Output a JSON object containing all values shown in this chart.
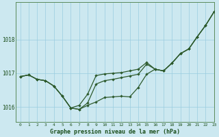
{
  "title": "Graphe pression niveau de la mer (hPa)",
  "background_color": "#cce8f0",
  "line_color": "#2d5a2d",
  "grid_color": "#99cce0",
  "text_color": "#1a4d1a",
  "xlim": [
    -0.5,
    23
  ],
  "ylim": [
    1015.55,
    1019.1
  ],
  "yticks": [
    1016,
    1017,
    1018
  ],
  "xticks": [
    0,
    1,
    2,
    3,
    4,
    5,
    6,
    7,
    8,
    9,
    10,
    11,
    12,
    13,
    14,
    15,
    16,
    17,
    18,
    19,
    20,
    21,
    22,
    23
  ],
  "line1": [
    1016.9,
    1016.95,
    1016.82,
    1016.78,
    1016.62,
    1016.32,
    1015.97,
    1015.93,
    1016.05,
    1016.15,
    1016.28,
    1016.3,
    1016.32,
    1016.3,
    1016.58,
    1016.97,
    1017.12,
    1017.07,
    1017.3,
    1017.58,
    1017.72,
    1018.08,
    1018.42,
    1018.82
  ],
  "line2": [
    1016.9,
    1016.95,
    1016.82,
    1016.78,
    1016.62,
    1016.32,
    1015.97,
    1015.93,
    1016.12,
    1016.68,
    1016.78,
    1016.82,
    1016.87,
    1016.92,
    1016.97,
    1017.27,
    1017.12,
    1017.07,
    1017.3,
    1017.58,
    1017.72,
    1018.08,
    1018.42,
    1018.82
  ],
  "line3": [
    1016.9,
    1016.95,
    1016.82,
    1016.78,
    1016.62,
    1016.32,
    1015.97,
    1016.05,
    1016.38,
    1016.93,
    1016.98,
    1017.0,
    1017.02,
    1017.07,
    1017.12,
    1017.32,
    1017.12,
    1017.07,
    1017.3,
    1017.58,
    1017.72,
    1018.08,
    1018.42,
    1018.82
  ]
}
